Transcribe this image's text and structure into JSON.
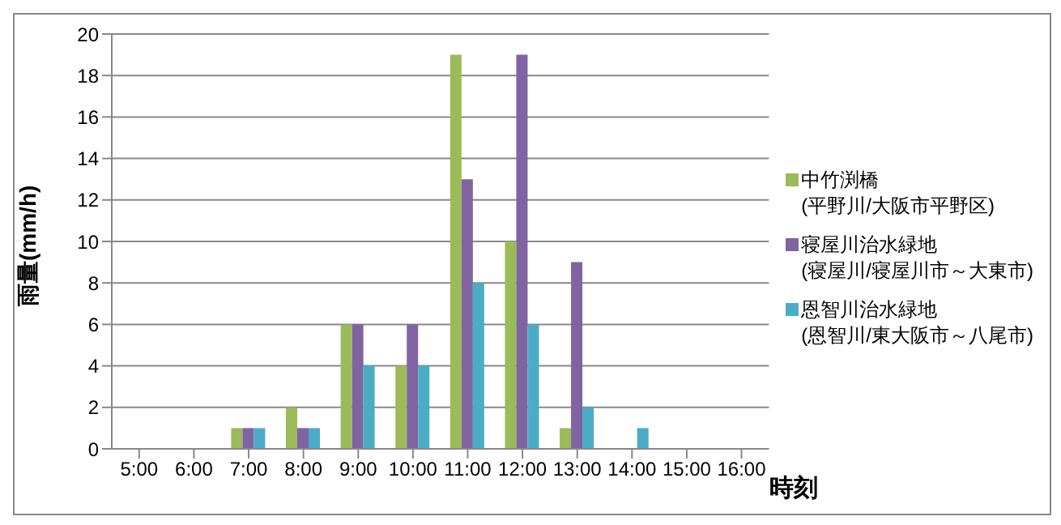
{
  "chart_data": {
    "type": "bar",
    "xlabel": "時刻",
    "ylabel": "雨量(mm/h)",
    "categories": [
      "5:00",
      "6:00",
      "7:00",
      "8:00",
      "9:00",
      "10:00",
      "11:00",
      "12:00",
      "13:00",
      "14:00",
      "15:00",
      "16:00"
    ],
    "series": [
      {
        "name": "中竹渕橋 (平野川/大阪市平野区)",
        "color": "#9bbb59",
        "values": [
          0,
          0,
          1,
          2,
          6,
          4,
          19,
          10,
          1,
          0,
          0,
          0
        ]
      },
      {
        "name": "寝屋川治水緑地 (寝屋川/寝屋川市～大東市)",
        "color": "#8064a2",
        "values": [
          0,
          0,
          1,
          1,
          6,
          6,
          13,
          19,
          9,
          0,
          0,
          0
        ]
      },
      {
        "name": "恩智川治水緑地 (恩智川/東大阪市～八尾市)",
        "color": "#4bacc6",
        "values": [
          0,
          0,
          1,
          1,
          4,
          4,
          8,
          6,
          2,
          1,
          0,
          0
        ]
      }
    ],
    "ylim": [
      0,
      20
    ],
    "yticks": [
      0,
      2,
      4,
      6,
      8,
      10,
      12,
      14,
      16,
      18,
      20
    ],
    "grid": "y",
    "legend": "right"
  }
}
